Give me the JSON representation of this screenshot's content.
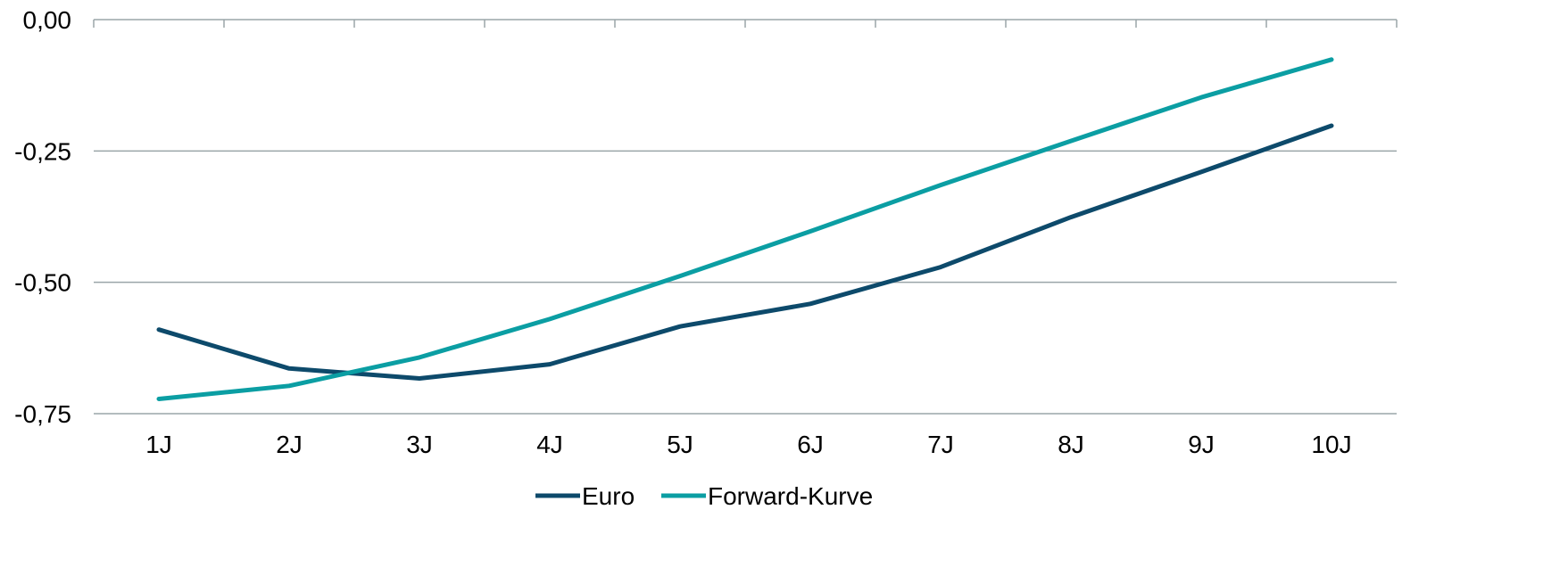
{
  "chart_data": {
    "type": "line",
    "categories": [
      "1J",
      "2J",
      "3J",
      "4J",
      "5J",
      "6J",
      "7J",
      "8J",
      "9J",
      "10J"
    ],
    "y_ticks": [
      "0,00",
      "-0,25",
      "-0,50",
      "-0,75"
    ],
    "y_tick_values": [
      0,
      -0.25,
      -0.5,
      -0.75
    ],
    "ylim": [
      -0.75,
      0
    ],
    "grid": "horizontal",
    "legend_position": "bottom",
    "series": [
      {
        "name": "Euro",
        "color": "#0d4a6b",
        "values": [
          -0.59,
          -0.664,
          -0.683,
          -0.656,
          -0.584,
          -0.541,
          -0.471,
          -0.376,
          -0.29,
          -0.202
        ]
      },
      {
        "name": "Forward-Kurve",
        "color": "#0b9ea3",
        "values": [
          -0.722,
          -0.697,
          -0.643,
          -0.57,
          -0.488,
          -0.403,
          -0.315,
          -0.231,
          -0.148,
          -0.076
        ]
      }
    ]
  }
}
